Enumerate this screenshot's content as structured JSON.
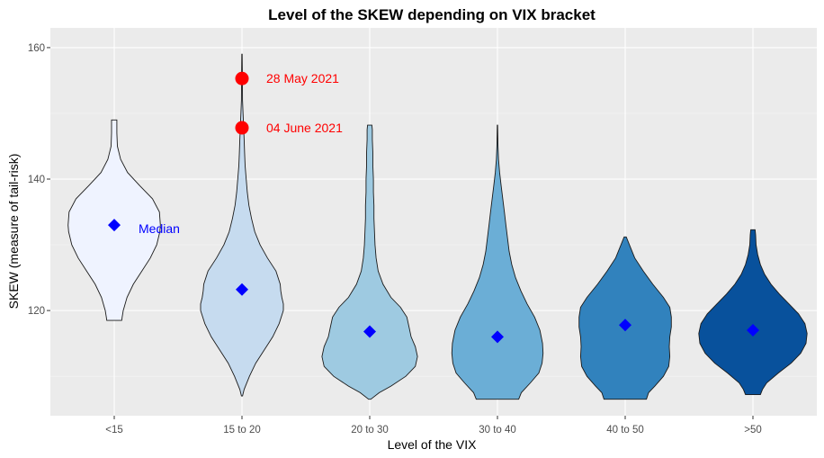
{
  "chart_data": {
    "type": "violin",
    "title": "Level of the SKEW depending on VIX bracket",
    "xlabel": "Level of the VIX",
    "ylabel": "SKEW (measure of tail-risk)",
    "ylim": [
      104,
      163
    ],
    "yticks": [
      120,
      140,
      160
    ],
    "y_minor_ticks": [
      110,
      130,
      150
    ],
    "grid": true,
    "colors": {
      "panel_bg": "#ebebeb",
      "grid_major": "#ffffff",
      "grid_minor": "#f5f5f5",
      "violin_outline": "#1a1a1a",
      "median_marker": "#0000ff",
      "highlight_point": "#ff0000",
      "highlight_text": "#ff0000",
      "median_text": "#0000ff"
    },
    "categories": [
      "<15",
      "15 to 20",
      "20 to 30",
      "30 to 40",
      "40 to 50",
      ">50"
    ],
    "series": [
      {
        "category": "<15",
        "fill": "#eff3ff",
        "median": 133.0,
        "density": [
          [
            118.5,
            0.14
          ],
          [
            119,
            0.15
          ],
          [
            120,
            0.17
          ],
          [
            122,
            0.24
          ],
          [
            124,
            0.36
          ],
          [
            126,
            0.52
          ],
          [
            128,
            0.68
          ],
          [
            130,
            0.8
          ],
          [
            132,
            0.86
          ],
          [
            133,
            0.87
          ],
          [
            135,
            0.85
          ],
          [
            137,
            0.72
          ],
          [
            139,
            0.48
          ],
          [
            141,
            0.25
          ],
          [
            143,
            0.12
          ],
          [
            145,
            0.06
          ],
          [
            147,
            0.05
          ],
          [
            149,
            0.05
          ]
        ]
      },
      {
        "category": "15 to 20",
        "fill": "#c6dbef",
        "median": 123.2,
        "density": [
          [
            107,
            0.01
          ],
          [
            108,
            0.04
          ],
          [
            110,
            0.14
          ],
          [
            112,
            0.26
          ],
          [
            114,
            0.42
          ],
          [
            116,
            0.58
          ],
          [
            118,
            0.7
          ],
          [
            120,
            0.78
          ],
          [
            121,
            0.78
          ],
          [
            122,
            0.75
          ],
          [
            123,
            0.73
          ],
          [
            124,
            0.72
          ],
          [
            126,
            0.64
          ],
          [
            128,
            0.48
          ],
          [
            130,
            0.34
          ],
          [
            132,
            0.24
          ],
          [
            134,
            0.18
          ],
          [
            136,
            0.13
          ],
          [
            138,
            0.1
          ],
          [
            140,
            0.08
          ],
          [
            142,
            0.06
          ],
          [
            144,
            0.05
          ],
          [
            146,
            0.04
          ],
          [
            148,
            0.03
          ],
          [
            150,
            0.02
          ],
          [
            152,
            0.01
          ],
          [
            155,
            0.008
          ],
          [
            159,
            0.004
          ]
        ],
        "highlights": [
          {
            "value": 155.3,
            "label": "28 May 2021"
          },
          {
            "value": 147.8,
            "label": "04 June 2021"
          }
        ]
      },
      {
        "category": "20 to 30",
        "fill": "#9ecae1",
        "median": 116.8,
        "density": [
          [
            106.5,
            0.02
          ],
          [
            107.5,
            0.18
          ],
          [
            108.5,
            0.4
          ],
          [
            110,
            0.68
          ],
          [
            111.5,
            0.86
          ],
          [
            113,
            0.9
          ],
          [
            114.5,
            0.86
          ],
          [
            116,
            0.78
          ],
          [
            117.5,
            0.74
          ],
          [
            119,
            0.7
          ],
          [
            120.5,
            0.58
          ],
          [
            122,
            0.4
          ],
          [
            124,
            0.25
          ],
          [
            126,
            0.16
          ],
          [
            128,
            0.12
          ],
          [
            130,
            0.1
          ],
          [
            132,
            0.09
          ],
          [
            134,
            0.08
          ],
          [
            136,
            0.08
          ],
          [
            138,
            0.07
          ],
          [
            140,
            0.07
          ],
          [
            142,
            0.06
          ],
          [
            144,
            0.06
          ],
          [
            146,
            0.05
          ],
          [
            147.5,
            0.05
          ],
          [
            148.2,
            0.04
          ]
        ]
      },
      {
        "category": "30 to 40",
        "fill": "#6baed6",
        "median": 116.0,
        "density": [
          [
            106.5,
            0.4
          ],
          [
            107.5,
            0.45
          ],
          [
            109,
            0.62
          ],
          [
            110.5,
            0.78
          ],
          [
            112,
            0.84
          ],
          [
            113.5,
            0.86
          ],
          [
            115,
            0.85
          ],
          [
            117,
            0.8
          ],
          [
            119,
            0.7
          ],
          [
            121,
            0.56
          ],
          [
            123,
            0.44
          ],
          [
            125,
            0.34
          ],
          [
            127,
            0.27
          ],
          [
            129,
            0.22
          ],
          [
            131,
            0.19
          ],
          [
            133,
            0.16
          ],
          [
            135,
            0.13
          ],
          [
            137,
            0.1
          ],
          [
            139,
            0.07
          ],
          [
            141,
            0.04
          ],
          [
            143,
            0.02
          ],
          [
            145,
            0.01
          ],
          [
            148.2,
            0.004
          ]
        ]
      },
      {
        "category": "40 to 50",
        "fill": "#3182bd",
        "median": 117.8,
        "density": [
          [
            106.5,
            0.4
          ],
          [
            107.5,
            0.44
          ],
          [
            108.5,
            0.56
          ],
          [
            110,
            0.72
          ],
          [
            111.5,
            0.82
          ],
          [
            113,
            0.84
          ],
          [
            114.5,
            0.83
          ],
          [
            116,
            0.84
          ],
          [
            117.5,
            0.87
          ],
          [
            119,
            0.87
          ],
          [
            120.5,
            0.84
          ],
          [
            122,
            0.72
          ],
          [
            124,
            0.52
          ],
          [
            126,
            0.34
          ],
          [
            128,
            0.18
          ],
          [
            130,
            0.08
          ],
          [
            131.2,
            0.02
          ]
        ]
      },
      {
        "category": ">50",
        "fill": "#08519c",
        "median": 117.0,
        "density": [
          [
            107.2,
            0.14
          ],
          [
            108,
            0.18
          ],
          [
            109,
            0.26
          ],
          [
            110.5,
            0.48
          ],
          [
            112,
            0.72
          ],
          [
            113.5,
            0.9
          ],
          [
            115,
            1.0
          ],
          [
            116.5,
            1.02
          ],
          [
            118,
            0.98
          ],
          [
            119.5,
            0.86
          ],
          [
            121,
            0.68
          ],
          [
            122.5,
            0.5
          ],
          [
            124,
            0.34
          ],
          [
            125.5,
            0.22
          ],
          [
            127,
            0.14
          ],
          [
            128.5,
            0.09
          ],
          [
            130,
            0.06
          ],
          [
            131.5,
            0.05
          ],
          [
            132.3,
            0.04
          ]
        ]
      }
    ],
    "annotations": [
      {
        "text": "Median",
        "category": "<15",
        "value": 132.5,
        "color": "#0000ff"
      }
    ]
  }
}
